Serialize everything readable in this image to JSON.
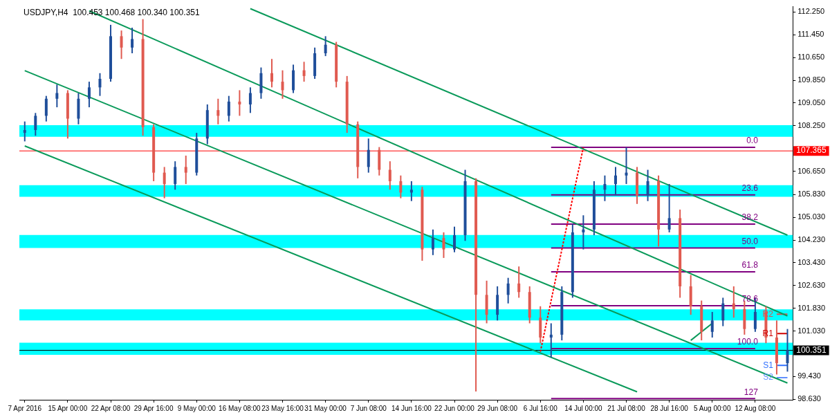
{
  "chart_data": {
    "type": "candlestick",
    "title": "USDJPY,H4  100.453 100.468 100.340 100.351",
    "categories": [
      "7 Apr 2016",
      null,
      null,
      null,
      "15 Apr 00:00",
      null,
      null,
      null,
      "22 Apr 08:00",
      null,
      null,
      null,
      "29 Apr 16:00",
      null,
      null,
      null,
      "9 May 00:00",
      null,
      null,
      null,
      "16 May 08:00",
      null,
      null,
      null,
      "23 May 16:00",
      null,
      null,
      null,
      "31 May 00:00",
      null,
      null,
      null,
      "7 Jun 08:00",
      null,
      null,
      null,
      "14 Jun 16:00",
      null,
      null,
      null,
      "22 Jun 00:00",
      null,
      null,
      null,
      "29 Jun 08:00",
      null,
      null,
      null,
      "6 Jul 16:00",
      null,
      null,
      null,
      "14 Jul 00:00",
      null,
      null,
      null,
      "21 Jul 08:00",
      null,
      null,
      null,
      "28 Jul 16:00",
      null,
      null,
      null,
      "5 Aug 00:00",
      null,
      null,
      null,
      "12 Aug 08:00",
      null,
      null,
      null
    ],
    "ohlc": [
      [
        108.0,
        108.4,
        107.7,
        108.1
      ],
      [
        108.1,
        108.7,
        107.9,
        108.6
      ],
      [
        108.6,
        109.3,
        108.4,
        109.2
      ],
      [
        109.2,
        109.7,
        108.9,
        109.4
      ],
      [
        109.4,
        109.5,
        107.8,
        108.5
      ],
      [
        108.5,
        109.4,
        108.3,
        109.2
      ],
      [
        109.2,
        109.8,
        108.9,
        109.6
      ],
      [
        109.6,
        110.1,
        109.3,
        109.9
      ],
      [
        109.9,
        111.8,
        109.8,
        111.4
      ],
      [
        111.4,
        111.6,
        110.6,
        111.0
      ],
      [
        111.0,
        111.7,
        110.8,
        111.3
      ],
      [
        111.3,
        112.0,
        107.9,
        108.2
      ],
      [
        108.2,
        108.3,
        106.3,
        106.6
      ],
      [
        106.6,
        106.8,
        105.7,
        106.2
      ],
      [
        106.2,
        107.0,
        106.0,
        106.8
      ],
      [
        106.8,
        107.2,
        106.2,
        106.6
      ],
      [
        106.6,
        108.0,
        106.5,
        107.8
      ],
      [
        107.8,
        109.0,
        107.6,
        108.8
      ],
      [
        108.8,
        109.2,
        108.3,
        108.6
      ],
      [
        108.6,
        109.3,
        108.4,
        109.1
      ],
      [
        109.1,
        109.5,
        108.6,
        109.0
      ],
      [
        109.0,
        109.6,
        108.7,
        109.4
      ],
      [
        109.4,
        110.3,
        109.2,
        110.1
      ],
      [
        110.1,
        110.6,
        109.6,
        109.8
      ],
      [
        109.8,
        110.2,
        109.2,
        109.5
      ],
      [
        109.5,
        110.4,
        109.4,
        110.2
      ],
      [
        110.2,
        110.5,
        109.8,
        110.0
      ],
      [
        110.0,
        111.0,
        109.9,
        110.8
      ],
      [
        110.8,
        111.4,
        110.7,
        111.1
      ],
      [
        111.1,
        111.2,
        109.6,
        109.8
      ],
      [
        109.8,
        110.0,
        108.0,
        108.3
      ],
      [
        108.3,
        108.4,
        106.4,
        106.8
      ],
      [
        106.8,
        107.8,
        106.6,
        107.4
      ],
      [
        107.4,
        107.5,
        106.5,
        106.7
      ],
      [
        106.7,
        107.0,
        106.0,
        106.3
      ],
      [
        106.3,
        106.5,
        105.7,
        105.9
      ],
      [
        105.9,
        106.3,
        105.6,
        106.0
      ],
      [
        106.0,
        106.1,
        103.5,
        103.9
      ],
      [
        103.9,
        104.6,
        103.7,
        104.3
      ],
      [
        104.3,
        104.5,
        103.6,
        103.9
      ],
      [
        103.9,
        104.7,
        103.8,
        104.4
      ],
      [
        104.4,
        106.7,
        104.2,
        106.3
      ],
      [
        106.3,
        106.4,
        98.9,
        102.3
      ],
      [
        102.3,
        102.8,
        101.3,
        101.6
      ],
      [
        101.6,
        102.6,
        101.4,
        102.3
      ],
      [
        102.3,
        102.9,
        102.0,
        102.7
      ],
      [
        102.7,
        103.3,
        102.2,
        102.4
      ],
      [
        102.4,
        102.6,
        101.3,
        101.5
      ],
      [
        101.5,
        101.9,
        100.6,
        100.8
      ],
      [
        100.8,
        101.3,
        100.1,
        100.9
      ],
      [
        100.9,
        102.6,
        100.7,
        102.4
      ],
      [
        102.4,
        104.8,
        102.2,
        104.5
      ],
      [
        104.5,
        105.1,
        103.9,
        104.6
      ],
      [
        104.6,
        106.3,
        104.4,
        106.0
      ],
      [
        106.0,
        106.5,
        105.6,
        106.2
      ],
      [
        106.2,
        106.8,
        105.8,
        106.5
      ],
      [
        106.5,
        107.49,
        106.2,
        106.6
      ],
      [
        106.6,
        106.8,
        105.5,
        105.8
      ],
      [
        105.8,
        106.7,
        105.6,
        106.3
      ],
      [
        106.3,
        106.5,
        104.0,
        104.6
      ],
      [
        104.6,
        106.2,
        104.5,
        105.0
      ],
      [
        105.0,
        105.3,
        102.2,
        102.6
      ],
      [
        102.6,
        103.0,
        101.6,
        101.9
      ],
      [
        101.9,
        102.1,
        100.7,
        101.0
      ],
      [
        101.0,
        101.7,
        100.8,
        101.4
      ],
      [
        101.4,
        102.2,
        101.2,
        102.0
      ],
      [
        102.0,
        102.6,
        101.5,
        101.8
      ],
      [
        101.8,
        102.1,
        100.9,
        101.1
      ],
      [
        101.1,
        102.2,
        101.0,
        101.7
      ],
      [
        101.7,
        101.9,
        100.6,
        100.8
      ],
      [
        100.8,
        101.4,
        99.5,
        99.9
      ],
      [
        99.9,
        101.1,
        99.6,
        100.351
      ]
    ],
    "colors": [
      "#1f4e9a",
      "#1f4e9a",
      "#1f4e9a",
      "#1f4e9a",
      "#e05a50",
      "#1f4e9a",
      "#1f4e9a",
      "#1f4e9a",
      "#1f4e9a",
      "#e05a50",
      "#1f4e9a",
      "#e05a50",
      "#e05a50",
      "#e05a50",
      "#1f4e9a",
      "#e05a50",
      "#1f4e9a",
      "#1f4e9a",
      "#e05a50",
      "#1f4e9a",
      "#e05a50",
      "#1f4e9a",
      "#1f4e9a",
      "#e05a50",
      "#e05a50",
      "#1f4e9a",
      "#e05a50",
      "#1f4e9a",
      "#1f4e9a",
      "#e05a50",
      "#e05a50",
      "#e05a50",
      "#1f4e9a",
      "#e05a50",
      "#e05a50",
      "#e05a50",
      "#1f4e9a",
      "#e05a50",
      "#1f4e9a",
      "#e05a50",
      "#1f4e9a",
      "#1f4e9a",
      "#e05a50",
      "#e05a50",
      "#1f4e9a",
      "#1f4e9a",
      "#e05a50",
      "#e05a50",
      "#e05a50",
      "#1f4e9a",
      "#1f4e9a",
      "#1f4e9a",
      "#1f4e9a",
      "#1f4e9a",
      "#1f4e9a",
      "#1f4e9a",
      "#1f4e9a",
      "#e05a50",
      "#1f4e9a",
      "#e05a50",
      "#1f4e9a",
      "#e05a50",
      "#e05a50",
      "#e05a50",
      "#1f4e9a",
      "#1f4e9a",
      "#e05a50",
      "#e05a50",
      "#1f4e9a",
      "#e05a50",
      "#e05a50",
      "#1f4e9a"
    ],
    "series": [
      {
        "type": "line",
        "color": "#0a9a5a",
        "values": [
          null,
          null,
          null,
          null,
          null,
          null,
          null,
          null,
          null,
          null,
          null,
          null,
          null,
          null,
          null,
          null,
          null,
          null,
          null,
          null,
          null,
          112.37,
          null,
          null,
          null,
          null,
          null,
          null,
          null,
          null,
          null,
          null,
          null,
          null,
          null,
          null,
          null,
          null,
          null,
          null,
          null,
          null,
          null,
          null,
          null,
          null,
          null,
          null,
          null,
          null,
          null,
          null,
          null,
          null,
          null,
          null,
          null,
          null,
          null,
          null,
          null,
          null,
          null,
          null,
          null,
          null,
          null,
          null,
          null,
          null,
          null,
          104.4
        ]
      },
      {
        "type": "line",
        "color": "#0a9a5a",
        "values": [
          null,
          null,
          null,
          null,
          null,
          null,
          112.29,
          null,
          null,
          null,
          null,
          null,
          null,
          null,
          null,
          null,
          null,
          null,
          null,
          null,
          null,
          null,
          null,
          null,
          null,
          null,
          null,
          null,
          null,
          null,
          null,
          null,
          null,
          null,
          null,
          null,
          null,
          null,
          null,
          null,
          null,
          null,
          null,
          null,
          null,
          null,
          null,
          null,
          null,
          null,
          null,
          null,
          null,
          null,
          null,
          null,
          null,
          null,
          null,
          null,
          null,
          null,
          null,
          null,
          null,
          null,
          null,
          null,
          null,
          null,
          null,
          101.56
        ]
      },
      {
        "type": "line",
        "color": "#0a9a5a",
        "values": [
          110.19,
          null,
          null,
          null,
          null,
          null,
          null,
          null,
          null,
          null,
          null,
          null,
          null,
          null,
          null,
          null,
          null,
          null,
          null,
          null,
          null,
          null,
          null,
          null,
          null,
          null,
          null,
          null,
          null,
          null,
          null,
          null,
          null,
          null,
          null,
          null,
          null,
          null,
          null,
          null,
          null,
          null,
          null,
          null,
          null,
          null,
          null,
          null,
          null,
          null,
          null,
          null,
          null,
          null,
          null,
          null,
          null,
          null,
          null,
          null,
          null,
          null,
          null,
          null,
          null,
          null,
          null,
          null,
          null,
          null,
          null,
          99.2
        ]
      },
      {
        "type": "line",
        "color": "#0a9a5a",
        "values": [
          107.54,
          null,
          null,
          null,
          null,
          null,
          null,
          null,
          null,
          null,
          null,
          null,
          null,
          null,
          null,
          null,
          null,
          null,
          null,
          null,
          null,
          null,
          null,
          null,
          null,
          null,
          null,
          null,
          null,
          null,
          null,
          null,
          null,
          null,
          null,
          null,
          null,
          null,
          null,
          null,
          null,
          null,
          null,
          null,
          null,
          null,
          null,
          null,
          null,
          null,
          null,
          null,
          null,
          null,
          null,
          null,
          null,
          98.89,
          null,
          null,
          null,
          null,
          null,
          null,
          null,
          null,
          null,
          null,
          null,
          null,
          null,
          null
        ]
      },
      {
        "type": "line",
        "color": "#0a9a5a",
        "values": [
          null,
          null,
          null,
          null,
          null,
          null,
          null,
          null,
          null,
          null,
          null,
          null,
          null,
          null,
          null,
          null,
          null,
          null,
          null,
          null,
          null,
          null,
          null,
          null,
          null,
          null,
          null,
          null,
          null,
          null,
          null,
          null,
          null,
          null,
          null,
          null,
          null,
          null,
          null,
          null,
          null,
          null,
          null,
          null,
          null,
          null,
          null,
          null,
          null,
          null,
          null,
          null,
          null,
          null,
          null,
          null,
          null,
          null,
          null,
          null,
          null,
          null,
          100.7,
          null,
          101.3,
          null,
          null,
          null,
          null,
          null,
          null,
          null
        ]
      },
      {
        "type": "line",
        "color": "#ff0000",
        "line_style": "dashed",
        "values": [
          null,
          null,
          null,
          null,
          null,
          null,
          null,
          null,
          null,
          null,
          null,
          null,
          null,
          null,
          null,
          null,
          null,
          null,
          null,
          null,
          null,
          null,
          null,
          null,
          null,
          null,
          null,
          null,
          null,
          null,
          null,
          null,
          null,
          null,
          null,
          null,
          null,
          null,
          null,
          null,
          null,
          null,
          null,
          null,
          null,
          null,
          null,
          null,
          100.3,
          null,
          null,
          null,
          107.49,
          null,
          null,
          null,
          null,
          null,
          null,
          null,
          null,
          null,
          null,
          null,
          null,
          null,
          null,
          null,
          null,
          null,
          null,
          null
        ]
      },
      {
        "type": "line",
        "name": "0.0",
        "color": "#800080",
        "values": [
          null,
          null,
          null,
          null,
          null,
          null,
          null,
          null,
          null,
          null,
          null,
          null,
          null,
          null,
          null,
          null,
          null,
          null,
          null,
          null,
          null,
          null,
          null,
          null,
          null,
          null,
          null,
          null,
          null,
          null,
          null,
          null,
          null,
          null,
          null,
          null,
          null,
          null,
          null,
          null,
          null,
          null,
          null,
          null,
          null,
          null,
          null,
          null,
          null,
          107.49,
          107.49,
          107.49,
          107.49,
          107.49,
          107.49,
          107.49,
          107.49,
          107.49,
          107.49,
          107.49,
          107.49,
          107.49,
          107.49,
          107.49,
          107.49,
          107.49,
          107.49,
          107.49,
          107.49,
          null,
          null,
          null
        ]
      },
      {
        "type": "line",
        "name": "23.6",
        "color": "#800080",
        "values": [
          null,
          null,
          null,
          null,
          null,
          null,
          null,
          null,
          null,
          null,
          null,
          null,
          null,
          null,
          null,
          null,
          null,
          null,
          null,
          null,
          null,
          null,
          null,
          null,
          null,
          null,
          null,
          null,
          null,
          null,
          null,
          null,
          null,
          null,
          null,
          null,
          null,
          null,
          null,
          null,
          null,
          null,
          null,
          null,
          null,
          null,
          null,
          null,
          null,
          105.82,
          105.82,
          105.82,
          105.82,
          105.82,
          105.82,
          105.82,
          105.82,
          105.82,
          105.82,
          105.82,
          105.82,
          105.82,
          105.82,
          105.82,
          105.82,
          105.82,
          105.82,
          105.82,
          105.82,
          null,
          null,
          null
        ]
      },
      {
        "type": "line",
        "name": "38.2",
        "color": "#800080",
        "values": [
          null,
          null,
          null,
          null,
          null,
          null,
          null,
          null,
          null,
          null,
          null,
          null,
          null,
          null,
          null,
          null,
          null,
          null,
          null,
          null,
          null,
          null,
          null,
          null,
          null,
          null,
          null,
          null,
          null,
          null,
          null,
          null,
          null,
          null,
          null,
          null,
          null,
          null,
          null,
          null,
          null,
          null,
          null,
          null,
          null,
          null,
          null,
          null,
          null,
          104.79,
          104.79,
          104.79,
          104.79,
          104.79,
          104.79,
          104.79,
          104.79,
          104.79,
          104.79,
          104.79,
          104.79,
          104.79,
          104.79,
          104.79,
          104.79,
          104.79,
          104.79,
          104.79,
          104.79,
          null,
          null,
          null
        ]
      },
      {
        "type": "line",
        "name": "50.0",
        "color": "#800080",
        "values": [
          null,
          null,
          null,
          null,
          null,
          null,
          null,
          null,
          null,
          null,
          null,
          null,
          null,
          null,
          null,
          null,
          null,
          null,
          null,
          null,
          null,
          null,
          null,
          null,
          null,
          null,
          null,
          null,
          null,
          null,
          null,
          null,
          null,
          null,
          null,
          null,
          null,
          null,
          null,
          null,
          null,
          null,
          null,
          null,
          null,
          null,
          null,
          null,
          null,
          103.95,
          103.95,
          103.95,
          103.95,
          103.95,
          103.95,
          103.95,
          103.95,
          103.95,
          103.95,
          103.95,
          103.95,
          103.95,
          103.95,
          103.95,
          103.95,
          103.95,
          103.95,
          103.95,
          103.95,
          null,
          null,
          null
        ]
      },
      {
        "type": "line",
        "name": "61.8",
        "color": "#800080",
        "values": [
          null,
          null,
          null,
          null,
          null,
          null,
          null,
          null,
          null,
          null,
          null,
          null,
          null,
          null,
          null,
          null,
          null,
          null,
          null,
          null,
          null,
          null,
          null,
          null,
          null,
          null,
          null,
          null,
          null,
          null,
          null,
          null,
          null,
          null,
          null,
          null,
          null,
          null,
          null,
          null,
          null,
          null,
          null,
          null,
          null,
          null,
          null,
          null,
          null,
          103.11,
          103.11,
          103.11,
          103.11,
          103.11,
          103.11,
          103.11,
          103.11,
          103.11,
          103.11,
          103.11,
          103.11,
          103.11,
          103.11,
          103.11,
          103.11,
          103.11,
          103.11,
          103.11,
          103.11,
          null,
          null,
          null
        ]
      },
      {
        "type": "line",
        "name": "78.6",
        "color": "#800080",
        "values": [
          null,
          null,
          null,
          null,
          null,
          null,
          null,
          null,
          null,
          null,
          null,
          null,
          null,
          null,
          null,
          null,
          null,
          null,
          null,
          null,
          null,
          null,
          null,
          null,
          null,
          null,
          null,
          null,
          null,
          null,
          null,
          null,
          null,
          null,
          null,
          null,
          null,
          null,
          null,
          null,
          null,
          null,
          null,
          null,
          null,
          null,
          null,
          null,
          null,
          101.92,
          101.92,
          101.92,
          101.92,
          101.92,
          101.92,
          101.92,
          101.92,
          101.92,
          101.92,
          101.92,
          101.92,
          101.92,
          101.92,
          101.92,
          101.92,
          101.92,
          101.92,
          101.92,
          101.92,
          null,
          null,
          null
        ]
      },
      {
        "type": "line",
        "name": "100.0",
        "color": "#800080",
        "values": [
          null,
          null,
          null,
          null,
          null,
          null,
          null,
          null,
          null,
          null,
          null,
          null,
          null,
          null,
          null,
          null,
          null,
          null,
          null,
          null,
          null,
          null,
          null,
          null,
          null,
          null,
          null,
          null,
          null,
          null,
          null,
          null,
          null,
          null,
          null,
          null,
          null,
          null,
          null,
          null,
          null,
          null,
          null,
          null,
          null,
          null,
          null,
          null,
          null,
          100.41,
          100.41,
          100.41,
          100.41,
          100.41,
          100.41,
          100.41,
          100.41,
          100.41,
          100.41,
          100.41,
          100.41,
          100.41,
          100.41,
          100.41,
          100.41,
          100.41,
          100.41,
          100.41,
          100.41,
          null,
          null,
          null
        ]
      },
      {
        "type": "line",
        "name": "127",
        "color": "#800080",
        "values": [
          null,
          null,
          null,
          null,
          null,
          null,
          null,
          null,
          null,
          null,
          null,
          null,
          null,
          null,
          null,
          null,
          null,
          null,
          null,
          null,
          null,
          null,
          null,
          null,
          null,
          null,
          null,
          null,
          null,
          null,
          null,
          null,
          null,
          null,
          null,
          null,
          null,
          null,
          null,
          null,
          null,
          null,
          null,
          null,
          null,
          null,
          null,
          null,
          null,
          98.65,
          98.65,
          98.65,
          98.65,
          98.65,
          98.65,
          98.65,
          98.65,
          98.65,
          98.65,
          98.65,
          98.65,
          98.65,
          98.65,
          98.65,
          98.65,
          98.65,
          98.65,
          98.65,
          98.65,
          null,
          null,
          null
        ]
      },
      {
        "type": "line",
        "name": "R2",
        "color": "#e05050",
        "values": [
          null,
          null,
          null,
          null,
          null,
          null,
          null,
          null,
          null,
          null,
          null,
          null,
          null,
          null,
          null,
          null,
          null,
          null,
          null,
          null,
          null,
          null,
          null,
          null,
          null,
          null,
          null,
          null,
          null,
          null,
          null,
          null,
          null,
          null,
          null,
          null,
          null,
          null,
          null,
          null,
          null,
          null,
          null,
          null,
          null,
          null,
          null,
          null,
          null,
          null,
          null,
          null,
          null,
          null,
          null,
          null,
          null,
          null,
          null,
          null,
          null,
          null,
          null,
          null,
          null,
          null,
          null,
          null,
          null,
          null,
          101.62,
          101.62
        ]
      },
      {
        "type": "line",
        "name": "R1",
        "color": "#d00000",
        "values": [
          null,
          null,
          null,
          null,
          null,
          null,
          null,
          null,
          null,
          null,
          null,
          null,
          null,
          null,
          null,
          null,
          null,
          null,
          null,
          null,
          null,
          null,
          null,
          null,
          null,
          null,
          null,
          null,
          null,
          null,
          null,
          null,
          null,
          null,
          null,
          null,
          null,
          null,
          null,
          null,
          null,
          null,
          null,
          null,
          null,
          null,
          null,
          null,
          null,
          null,
          null,
          null,
          null,
          null,
          null,
          null,
          null,
          null,
          null,
          null,
          null,
          null,
          null,
          null,
          null,
          null,
          null,
          null,
          null,
          null,
          100.94,
          100.94
        ]
      },
      {
        "type": "line",
        "name": "S1",
        "color": "#3070ff",
        "values": [
          null,
          null,
          null,
          null,
          null,
          null,
          null,
          null,
          null,
          null,
          null,
          null,
          null,
          null,
          null,
          null,
          null,
          null,
          null,
          null,
          null,
          null,
          null,
          null,
          null,
          null,
          null,
          null,
          null,
          null,
          null,
          null,
          null,
          null,
          null,
          null,
          null,
          null,
          null,
          null,
          null,
          null,
          null,
          null,
          null,
          null,
          null,
          null,
          null,
          null,
          null,
          null,
          null,
          null,
          null,
          null,
          null,
          null,
          null,
          null,
          null,
          null,
          null,
          null,
          null,
          null,
          null,
          null,
          null,
          null,
          99.82,
          99.82
        ]
      },
      {
        "type": "line",
        "name": "S2",
        "color": "#6090ff",
        "values": [
          null,
          null,
          null,
          null,
          null,
          null,
          null,
          null,
          null,
          null,
          null,
          null,
          null,
          null,
          null,
          null,
          null,
          null,
          null,
          null,
          null,
          null,
          null,
          null,
          null,
          null,
          null,
          null,
          null,
          null,
          null,
          null,
          null,
          null,
          null,
          null,
          null,
          null,
          null,
          null,
          null,
          null,
          null,
          null,
          null,
          null,
          null,
          null,
          null,
          null,
          null,
          null,
          null,
          null,
          null,
          null,
          null,
          null,
          null,
          null,
          null,
          null,
          null,
          null,
          null,
          null,
          null,
          null,
          null,
          null,
          99.39,
          99.39
        ]
      }
    ],
    "bands": [
      {
        "axis": "y",
        "from": 107.86,
        "to": 108.27,
        "color": "#00ffff"
      },
      {
        "axis": "y",
        "from": 105.75,
        "to": 106.16,
        "color": "#00ffff"
      },
      {
        "axis": "y",
        "from": 103.95,
        "to": 104.41,
        "color": "#00ffff"
      },
      {
        "axis": "y",
        "from": 101.4,
        "to": 101.79,
        "color": "#00ffff"
      },
      {
        "axis": "y",
        "from": 100.19,
        "to": 100.62,
        "color": "#00ffff"
      }
    ],
    "ref_lines": [
      {
        "axis": "y",
        "value": 107.365,
        "label": "107.365",
        "color": "#ff0000"
      },
      {
        "axis": "y",
        "value": 100.351,
        "label": "100.351",
        "color": "#000000"
      }
    ],
    "ylim": [
      98.61,
      112.44
    ],
    "yticks": [
      {
        "value": 112.25,
        "label": "112.250"
      },
      {
        "value": 111.45,
        "label": "111.450"
      },
      {
        "value": 110.65,
        "label": "110.650"
      },
      {
        "value": 109.85,
        "label": "109.850"
      },
      {
        "value": 109.05,
        "label": "109.050"
      },
      {
        "value": 108.25,
        "label": "108.250"
      },
      {
        "value": 106.65,
        "label": "106.650"
      },
      {
        "value": 105.83,
        "label": "105.830"
      },
      {
        "value": 105.03,
        "label": "105.030"
      },
      {
        "value": 104.23,
        "label": "104.230"
      },
      {
        "value": 103.43,
        "label": "103.430"
      },
      {
        "value": 102.63,
        "label": "102.630"
      },
      {
        "value": 101.83,
        "label": "101.830"
      },
      {
        "value": 101.03,
        "label": "101.030"
      },
      {
        "value": 99.43,
        "label": "99.430"
      },
      {
        "value": 98.63,
        "label": "98.630"
      }
    ]
  }
}
